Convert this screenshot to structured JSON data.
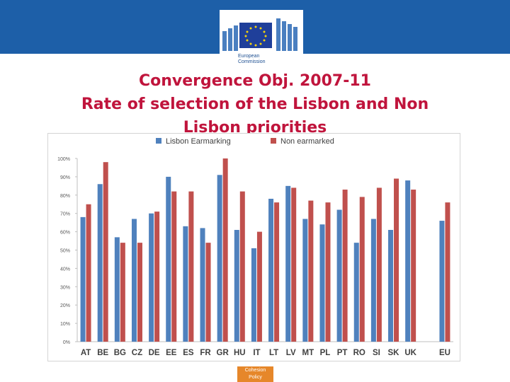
{
  "header": {
    "logo": {
      "name": "european-commission-logo",
      "lines": [
        "European",
        "Commission"
      ]
    }
  },
  "title": {
    "line1": "Convergence Obj. 2007-11",
    "line2": "Rate of selection of the Lisbon and Non",
    "line3": "Lisbon priorities"
  },
  "colors": {
    "header": "#1d5fa8",
    "title": "#c0143c",
    "lisbon": "#4f81bd",
    "non": "#c0504d",
    "footer": "#e6872a"
  },
  "chart_data": {
    "type": "bar",
    "categories": [
      "AT",
      "BE",
      "BG",
      "CZ",
      "DE",
      "EE",
      "ES",
      "FR",
      "GR",
      "HU",
      "IT",
      "LT",
      "LV",
      "MT",
      "PL",
      "PT",
      "RO",
      "SI",
      "SK",
      "UK",
      "",
      "EU"
    ],
    "series": [
      {
        "name": "Lisbon Earmarking",
        "values": [
          68,
          86,
          57,
          67,
          70,
          90,
          63,
          62,
          91,
          61,
          51,
          78,
          85,
          67,
          64,
          72,
          54,
          67,
          61,
          88,
          null,
          66
        ]
      },
      {
        "name": "Non earmarked",
        "values": [
          75,
          98,
          54,
          54,
          71,
          82,
          82,
          54,
          100,
          82,
          60,
          76,
          84,
          77,
          76,
          83,
          79,
          84,
          89,
          83,
          null,
          76
        ]
      }
    ],
    "yticks": [
      "0%",
      "10%",
      "20%",
      "30%",
      "40%",
      "50%",
      "60%",
      "70%",
      "80%",
      "90%",
      "100%"
    ],
    "ylim": [
      0,
      100
    ],
    "legend_position": "top",
    "grid": false
  },
  "footer": {
    "line1": "Cohesion",
    "line2": "Policy"
  }
}
